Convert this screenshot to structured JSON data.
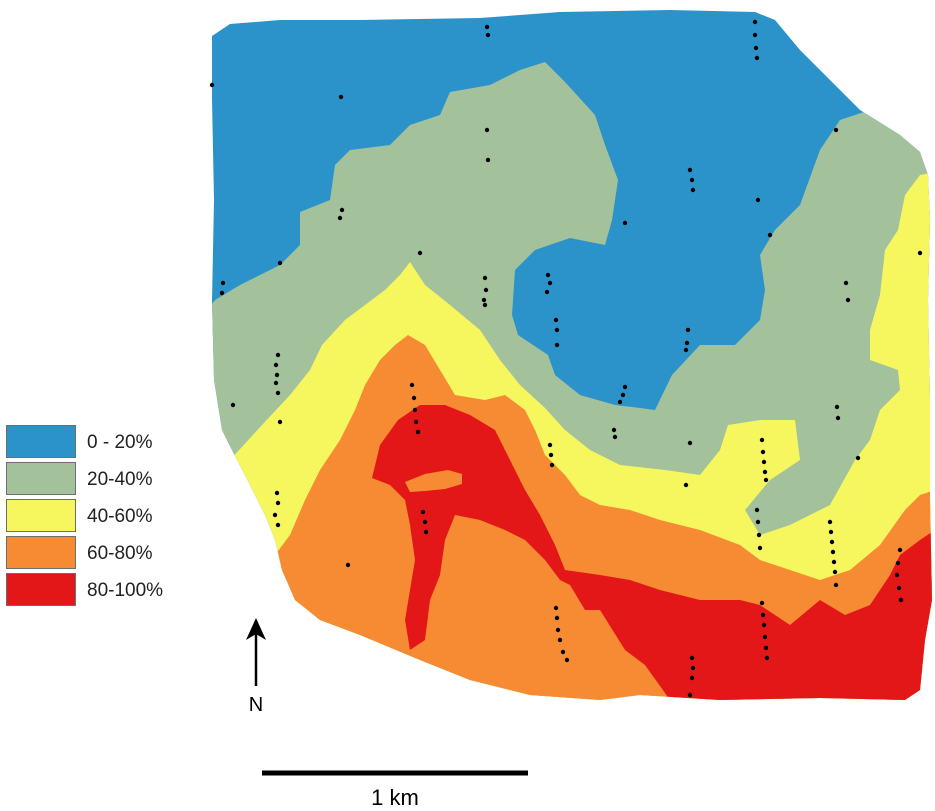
{
  "colors": {
    "c0_20": "#2b93c9",
    "c20_40": "#a3c29c",
    "c40_60": "#f6f65f",
    "c60_80": "#f68b33",
    "c80_100": "#e41718",
    "points": "#000000"
  },
  "legend": [
    {
      "label": "0 - 20%",
      "color": "#2b93c9"
    },
    {
      "label": "20-40%",
      "color": "#a3c29c"
    },
    {
      "label": "40-60%",
      "color": "#f6f65f"
    },
    {
      "label": "60-80%",
      "color": "#f68b33"
    },
    {
      "label": "80-100%",
      "color": "#e41718"
    }
  ],
  "north_arrow": {
    "label": "N",
    "icon": "north-arrow-icon"
  },
  "scale_bar": {
    "label": "1 km"
  }
}
